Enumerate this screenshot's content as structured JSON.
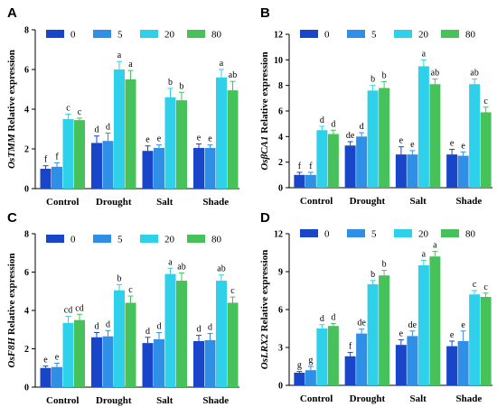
{
  "colors": [
    "#1946c9",
    "#2f8ee6",
    "#2fd0ea",
    "#47c25a"
  ],
  "legend": [
    "0",
    "5",
    "20",
    "80"
  ],
  "chart_data": [
    {
      "type": "bar",
      "panel": "A",
      "categories": [
        "Control",
        "Drought",
        "Salt",
        "Shade"
      ],
      "ylabel": "OsTMM Relative expression",
      "ylim": [
        0,
        8
      ],
      "yticks": [
        0,
        2,
        4,
        6,
        8
      ],
      "series": [
        {
          "name": "0",
          "values": [
            1.0,
            2.3,
            1.9,
            2.05
          ],
          "errors": [
            0.15,
            0.35,
            0.25,
            0.2
          ],
          "labels": [
            "f",
            "d",
            "e",
            "e"
          ]
        },
        {
          "name": "5",
          "values": [
            1.1,
            2.4,
            2.05,
            2.05
          ],
          "errors": [
            0.2,
            0.4,
            0.15,
            0.15
          ],
          "labels": [
            "f",
            "d",
            "e",
            "e"
          ]
        },
        {
          "name": "20",
          "values": [
            3.5,
            6.0,
            4.6,
            5.6
          ],
          "errors": [
            0.25,
            0.4,
            0.45,
            0.4
          ],
          "labels": [
            "c",
            "a",
            "b",
            "a"
          ]
        },
        {
          "name": "80",
          "values": [
            3.45,
            5.5,
            4.45,
            4.95
          ],
          "errors": [
            0.1,
            0.45,
            0.4,
            0.45
          ],
          "labels": [
            "c",
            "a",
            "b",
            "ab"
          ]
        }
      ]
    },
    {
      "type": "bar",
      "panel": "B",
      "categories": [
        "Control",
        "Drought",
        "Salt",
        "Shade"
      ],
      "ylabel": "OsβCA1 Relative expression",
      "ylim": [
        0,
        12
      ],
      "yticks": [
        0,
        2,
        4,
        6,
        8,
        10,
        12
      ],
      "series": [
        {
          "name": "0",
          "values": [
            1.0,
            3.3,
            2.6,
            2.6
          ],
          "errors": [
            0.2,
            0.3,
            0.6,
            0.4
          ],
          "labels": [
            "f",
            "de",
            "e",
            "e"
          ]
        },
        {
          "name": "5",
          "values": [
            1.0,
            4.0,
            2.6,
            2.5
          ],
          "errors": [
            0.2,
            0.3,
            0.3,
            0.3
          ],
          "labels": [
            "f",
            "d",
            "e",
            "e"
          ]
        },
        {
          "name": "20",
          "values": [
            4.5,
            7.6,
            9.5,
            8.1
          ],
          "errors": [
            0.3,
            0.4,
            0.5,
            0.4
          ],
          "labels": [
            "d",
            "b",
            "a",
            "ab"
          ]
        },
        {
          "name": "80",
          "values": [
            4.2,
            7.8,
            8.1,
            5.9
          ],
          "errors": [
            0.3,
            0.5,
            0.4,
            0.4
          ],
          "labels": [
            "d",
            "b",
            "ab",
            "c"
          ]
        }
      ]
    },
    {
      "type": "bar",
      "panel": "C",
      "categories": [
        "Control",
        "Drought",
        "Salt",
        "Shade"
      ],
      "ylabel": "OsF8H Relative expression",
      "ylim": [
        0,
        8
      ],
      "yticks": [
        0,
        2,
        4,
        6,
        8
      ],
      "series": [
        {
          "name": "0",
          "values": [
            1.0,
            2.6,
            2.3,
            2.4
          ],
          "errors": [
            0.1,
            0.25,
            0.3,
            0.3
          ],
          "labels": [
            "e",
            "d",
            "d",
            "d"
          ]
        },
        {
          "name": "5",
          "values": [
            1.05,
            2.65,
            2.5,
            2.45
          ],
          "errors": [
            0.2,
            0.3,
            0.35,
            0.35
          ],
          "labels": [
            "e",
            "d",
            "d",
            "d"
          ]
        },
        {
          "name": "20",
          "values": [
            3.35,
            5.05,
            5.9,
            5.55
          ],
          "errors": [
            0.35,
            0.3,
            0.3,
            0.3
          ],
          "labels": [
            "cd",
            "b",
            "a",
            "ab"
          ]
        },
        {
          "name": "80",
          "values": [
            3.5,
            4.4,
            5.55,
            4.4
          ],
          "errors": [
            0.3,
            0.35,
            0.4,
            0.3
          ],
          "labels": [
            "cd",
            "c",
            "ab",
            "c"
          ]
        }
      ]
    },
    {
      "type": "bar",
      "panel": "D",
      "categories": [
        "Control",
        "Drought",
        "Salt",
        "Shade"
      ],
      "ylabel": "OsLRX2 Relative expression",
      "ylim": [
        0,
        12
      ],
      "yticks": [
        0,
        3,
        6,
        9,
        12
      ],
      "series": [
        {
          "name": "0",
          "values": [
            1.0,
            2.3,
            3.2,
            3.1
          ],
          "errors": [
            0.1,
            0.3,
            0.4,
            0.4
          ],
          "labels": [
            "g",
            "f",
            "e",
            "e"
          ]
        },
        {
          "name": "5",
          "values": [
            1.2,
            4.1,
            3.9,
            3.5
          ],
          "errors": [
            0.3,
            0.35,
            0.4,
            0.8
          ],
          "labels": [
            "g",
            "de",
            "de",
            "e"
          ]
        },
        {
          "name": "20",
          "values": [
            4.5,
            8.0,
            9.5,
            7.2
          ],
          "errors": [
            0.3,
            0.3,
            0.4,
            0.3
          ],
          "labels": [
            "d",
            "b",
            "a",
            "c"
          ]
        },
        {
          "name": "80",
          "values": [
            4.7,
            8.7,
            10.2,
            7.0
          ],
          "errors": [
            0.2,
            0.4,
            0.4,
            0.3
          ],
          "labels": [
            "d",
            "b",
            "a",
            "c"
          ]
        }
      ]
    }
  ]
}
